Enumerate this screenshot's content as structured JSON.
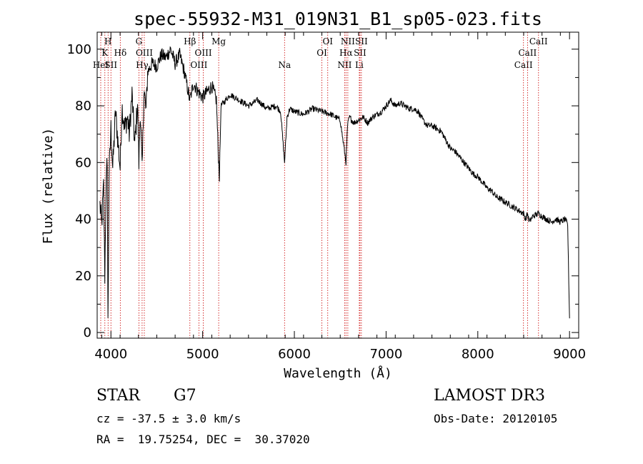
{
  "chart_data": {
    "type": "line",
    "title": "spec-55932-M31_019N31_B1_sp05-023.fits",
    "xlabel": "Wavelength (Å)",
    "ylabel": "Flux (relative)",
    "xlim": [
      3850,
      9100
    ],
    "ylim": [
      -2,
      106
    ],
    "x_ticks": [
      4000,
      5000,
      6000,
      7000,
      8000,
      9000
    ],
    "x_tick_labels": [
      "4000",
      "5000",
      "6000",
      "7000",
      "8000",
      "9000"
    ],
    "y_ticks": [
      0,
      20,
      40,
      60,
      80,
      100
    ],
    "y_tick_labels": [
      "0",
      "20",
      "40",
      "60",
      "80",
      "100"
    ],
    "series": [
      {
        "name": "flux",
        "x": [
          3880,
          3900,
          3920,
          3933,
          3945,
          3960,
          3968,
          3980,
          4000,
          4020,
          4050,
          4080,
          4101,
          4120,
          4150,
          4180,
          4200,
          4230,
          4260,
          4290,
          4305,
          4320,
          4340,
          4360,
          4383,
          4400,
          4450,
          4500,
          4550,
          4600,
          4650,
          4700,
          4750,
          4800,
          4861,
          4900,
          4950,
          5000,
          5050,
          5100,
          5150,
          5172,
          5183,
          5200,
          5300,
          5400,
          5500,
          5600,
          5700,
          5800,
          5850,
          5893,
          5920,
          5950,
          6000,
          6100,
          6200,
          6300,
          6400,
          6450,
          6500,
          6563,
          6580,
          6600,
          6650,
          6700,
          6750,
          6800,
          6850,
          6900,
          6950,
          7000,
          7050,
          7100,
          7150,
          7200,
          7250,
          7300,
          7350,
          7400,
          7450,
          7500,
          7550,
          7600,
          7650,
          7700,
          7750,
          7800,
          7850,
          7900,
          7950,
          8000,
          8050,
          8100,
          8150,
          8200,
          8250,
          8300,
          8350,
          8400,
          8450,
          8498,
          8520,
          8542,
          8560,
          8600,
          8662,
          8700,
          8750,
          8800,
          8850,
          8900,
          8950,
          8980,
          9000
        ],
        "y": [
          45,
          38,
          52,
          20,
          48,
          62,
          3,
          55,
          72,
          58,
          78,
          66,
          58,
          80,
          72,
          76,
          70,
          84,
          66,
          81,
          60,
          79,
          56,
          86,
          78,
          92,
          95,
          94,
          98,
          97,
          100,
          95,
          98,
          92,
          82,
          88,
          85,
          83,
          85,
          87,
          82,
          62,
          55,
          80,
          84,
          82,
          80,
          82,
          79,
          80,
          78,
          60,
          76,
          79,
          78,
          77,
          79,
          78,
          77,
          76,
          75,
          60,
          73,
          76,
          74,
          75,
          76,
          74,
          76,
          77,
          78,
          80,
          82,
          80,
          81,
          80,
          79,
          79,
          78,
          75,
          73,
          73,
          72,
          71,
          68,
          65,
          64,
          62,
          60,
          58,
          56,
          55,
          53,
          51,
          50,
          48,
          47,
          46,
          45,
          44,
          43,
          42,
          40,
          42,
          39,
          41,
          42,
          41,
          40,
          39,
          40,
          39,
          40,
          38,
          5
        ]
      }
    ],
    "lines": [
      {
        "x": 3889,
        "label": "HeI",
        "row": 3
      },
      {
        "x": 3934,
        "label": "K",
        "row": 2
      },
      {
        "x": 3969,
        "label": "H",
        "row": 1
      },
      {
        "x": 4000,
        "label": "SII",
        "row": 3
      },
      {
        "x": 4102,
        "label": "Hδ",
        "row": 2
      },
      {
        "x": 4305,
        "label": "G",
        "row": 1
      },
      {
        "x": 4340,
        "label": "Hγ",
        "row": 3
      },
      {
        "x": 4364,
        "label": "OIII",
        "row": 2
      },
      {
        "x": 4861,
        "label": "Hβ",
        "row": 1
      },
      {
        "x": 4959,
        "label": "OIII",
        "row": 3
      },
      {
        "x": 5007,
        "label": "OIII",
        "row": 2
      },
      {
        "x": 5175,
        "label": "Mg",
        "row": 1
      },
      {
        "x": 5893,
        "label": "Na",
        "row": 3
      },
      {
        "x": 6300,
        "label": "OI",
        "row": 2
      },
      {
        "x": 6364,
        "label": "OI",
        "row": 1
      },
      {
        "x": 6548,
        "label": "NII",
        "row": 3
      },
      {
        "x": 6563,
        "label": "Hα",
        "row": 2
      },
      {
        "x": 6583,
        "label": "NII",
        "row": 1
      },
      {
        "x": 6708,
        "label": "Li",
        "row": 3
      },
      {
        "x": 6716,
        "label": "SII",
        "row": 2
      },
      {
        "x": 6731,
        "label": "SII",
        "row": 1
      },
      {
        "x": 8498,
        "label": "CaII",
        "row": 3
      },
      {
        "x": 8542,
        "label": "CaII",
        "row": 2
      },
      {
        "x": 8662,
        "label": "CaII",
        "row": 1
      }
    ]
  },
  "info": {
    "object_class": "STAR",
    "subclass": "G7",
    "survey": "LAMOST DR3",
    "cz": "cz = -37.5 ± 3.0 km/s",
    "obs_date": "Obs-Date: 20120105",
    "coords": "RA =  19.75254, DEC =  30.37020"
  },
  "colors": {
    "spectrum": "#000000",
    "line_markers": "#cc0000",
    "axes": "#000000"
  }
}
